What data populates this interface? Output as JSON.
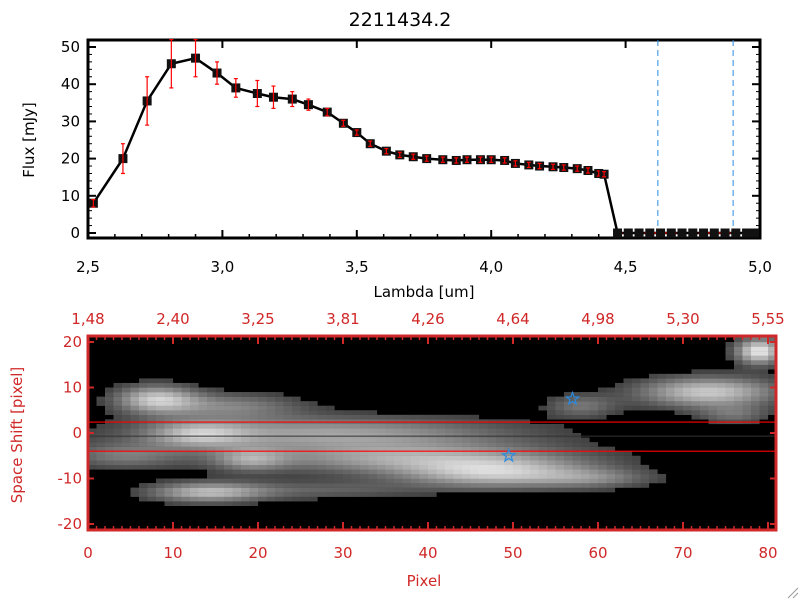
{
  "colors": {
    "axis_top": "#000000",
    "axis_bottom": "#d02828",
    "error": "#ff0000",
    "marker_face": "#cc2020",
    "markers": "#000000",
    "dashed": "#2a8be0",
    "lines": "#ff0000",
    "star": "#2a8be0"
  },
  "icons": {
    "resize": "resize-grip-icon",
    "marker": "square-marker",
    "source": "star-icon"
  },
  "chart_data": [
    {
      "type": "line",
      "title": "2211434.2",
      "xlabel": "Lambda [um]",
      "ylabel": "Flux [mJy]",
      "xlim": [
        2.5,
        5.0
      ],
      "ylim": [
        0,
        50
      ],
      "xticks": [
        "2,5",
        "3,0",
        "3,5",
        "4,0",
        "4,5",
        "5,0"
      ],
      "yticks": [
        "0",
        "10",
        "20",
        "30",
        "40",
        "50"
      ],
      "grid": false,
      "x": [
        2.52,
        2.63,
        2.72,
        2.81,
        2.9,
        2.98,
        3.05,
        3.13,
        3.19,
        3.26,
        3.32,
        3.39,
        3.45,
        3.5,
        3.55,
        3.61,
        3.66,
        3.71,
        3.76,
        3.82,
        3.87,
        3.91,
        3.96,
        4.0,
        4.05,
        4.09,
        4.14,
        4.18,
        4.23,
        4.27,
        4.32,
        4.36,
        4.4,
        4.42,
        4.47,
        4.51,
        4.55,
        4.59,
        4.63,
        4.67,
        4.71,
        4.75,
        4.79,
        4.83,
        4.87,
        4.91,
        4.95,
        4.98
      ],
      "y": [
        8,
        20,
        35.5,
        45.5,
        47,
        43,
        39,
        37.5,
        36.5,
        36,
        34.5,
        32.5,
        29.5,
        27,
        24,
        22,
        21,
        20.5,
        20,
        19.7,
        19.5,
        19.7,
        19.7,
        19.7,
        19.5,
        18.7,
        18.3,
        18,
        17.8,
        17.6,
        17.3,
        16.8,
        16,
        15.8,
        0,
        0,
        0,
        0,
        0,
        0,
        0,
        0,
        0,
        0,
        0,
        0,
        0,
        0
      ],
      "yerr": [
        1,
        4,
        6.5,
        6.5,
        5,
        3,
        2.5,
        3.5,
        3,
        2,
        1.5,
        1,
        0.8,
        0.7,
        0.7,
        0.7,
        0.7,
        0.7,
        0.7,
        0.7,
        0.7,
        0.7,
        0.7,
        0.7,
        0.7,
        0.7,
        0.7,
        0.7,
        0.7,
        0.7,
        0.7,
        0.7,
        0.7,
        0.7,
        0,
        0,
        0,
        0,
        0,
        0,
        0,
        0,
        0,
        0,
        0,
        0,
        0,
        0
      ],
      "vlines": [
        4.62,
        4.9
      ],
      "zero_dashed_from": 4.47
    },
    {
      "type": "heatmap",
      "xlabel": "Pixel",
      "ylabel": "Space Shift [pixel]",
      "xlim": [
        0,
        81
      ],
      "ylim": [
        -21,
        21
      ],
      "xticks": [
        "0",
        "10",
        "20",
        "30",
        "40",
        "50",
        "60",
        "70",
        "80"
      ],
      "yticks": [
        "-20",
        "-10",
        "0",
        "10",
        "20"
      ],
      "top_xticks": [
        "1,48",
        "2,40",
        "3,25",
        "3,81",
        "4,26",
        "4,64",
        "4,98",
        "5,30",
        "5,55"
      ],
      "hlines_red": [
        2.4,
        -4
      ],
      "hline_black": -0.7,
      "stars": [
        {
          "x": 57,
          "y": 7.5
        },
        {
          "x": 49.5,
          "y": -5
        }
      ],
      "components": [
        {
          "x": 28,
          "y": 0,
          "sx": 16,
          "sy": 2.6,
          "a": 0.55
        },
        {
          "x": 13,
          "y": -0.3,
          "sx": 4,
          "sy": 2,
          "a": 0.45
        },
        {
          "x": 38,
          "y": -5.5,
          "sx": 14,
          "sy": 2.4,
          "a": 0.55
        },
        {
          "x": 19,
          "y": -5.8,
          "sx": 3,
          "sy": 1.8,
          "a": 0.4
        },
        {
          "x": 4,
          "y": -5,
          "sx": 5,
          "sy": 2,
          "a": 0.35
        },
        {
          "x": 14,
          "y": -13,
          "sx": 5,
          "sy": 1.6,
          "a": 0.65
        },
        {
          "x": 28,
          "y": -12.5,
          "sx": 8,
          "sy": 1.5,
          "a": 0.25
        },
        {
          "x": 8,
          "y": 7.5,
          "sx": 3.5,
          "sy": 2.2,
          "a": 0.7
        },
        {
          "x": 17,
          "y": 6,
          "sx": 6,
          "sy": 2,
          "a": 0.4
        },
        {
          "x": 48,
          "y": -9,
          "sx": 8,
          "sy": 2.3,
          "a": 0.65
        },
        {
          "x": 60,
          "y": -10,
          "sx": 5,
          "sy": 1.5,
          "a": 0.3
        },
        {
          "x": 58,
          "y": 6,
          "sx": 3,
          "sy": 1.8,
          "a": 0.35
        },
        {
          "x": 73,
          "y": 9,
          "sx": 6,
          "sy": 2.4,
          "a": 0.75
        },
        {
          "x": 76,
          "y": 4,
          "sx": 3,
          "sy": 1.5,
          "a": 0.3
        },
        {
          "x": 79,
          "y": 18,
          "sx": 2,
          "sy": 2,
          "a": 0.9
        }
      ]
    }
  ]
}
